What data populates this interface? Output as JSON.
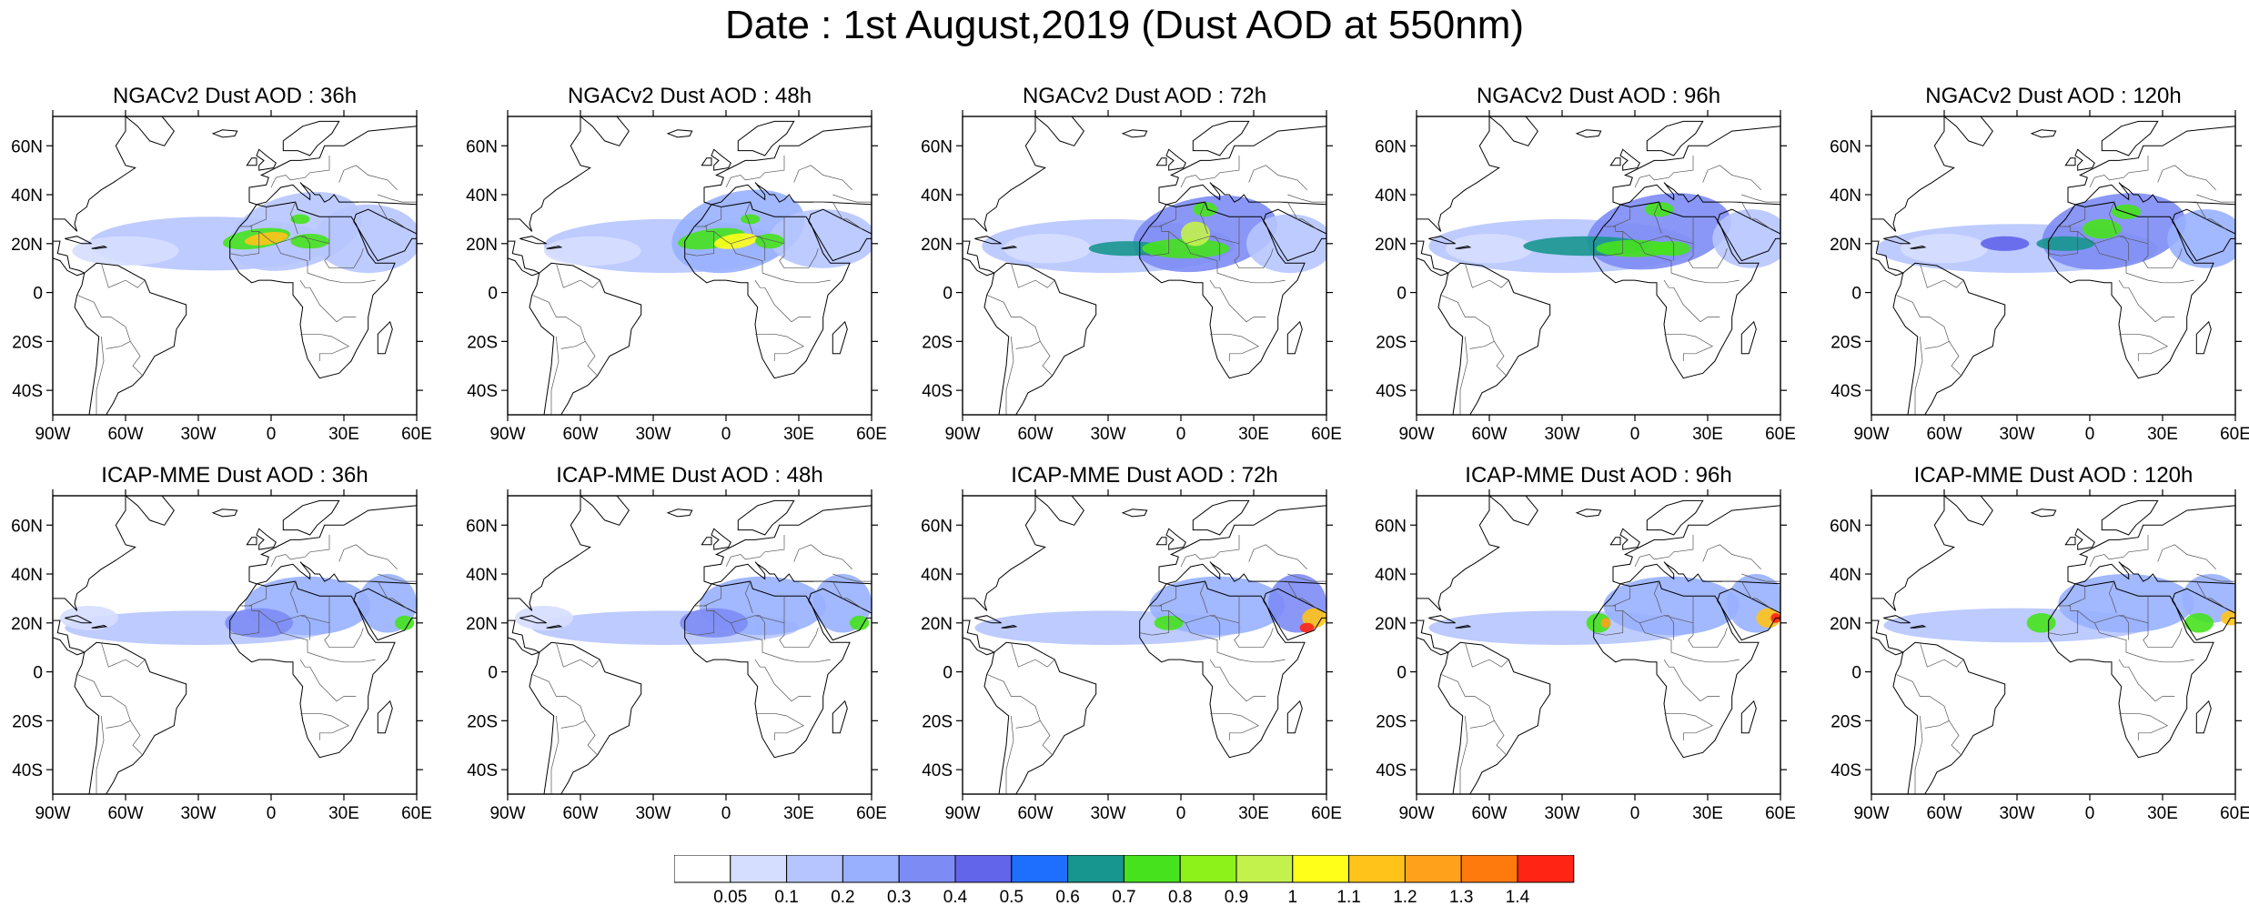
{
  "title": "Date : 1st August,2019 (Dust AOD at 550nm)",
  "panels": [
    {
      "title": "NGACv2 Dust AOD : 36h",
      "model": "NGACv2",
      "lead_hours": 36
    },
    {
      "title": "NGACv2 Dust AOD : 48h",
      "model": "NGACv2",
      "lead_hours": 48
    },
    {
      "title": "NGACv2 Dust AOD : 72h",
      "model": "NGACv2",
      "lead_hours": 72
    },
    {
      "title": "NGACv2 Dust AOD : 96h",
      "model": "NGACv2",
      "lead_hours": 96
    },
    {
      "title": "NGACv2 Dust AOD : 120h",
      "model": "NGACv2",
      "lead_hours": 120
    },
    {
      "title": "ICAP-MME Dust AOD : 36h",
      "model": "ICAP-MME",
      "lead_hours": 36
    },
    {
      "title": "ICAP-MME Dust AOD : 48h",
      "model": "ICAP-MME",
      "lead_hours": 48
    },
    {
      "title": "ICAP-MME Dust AOD : 72h",
      "model": "ICAP-MME",
      "lead_hours": 72
    },
    {
      "title": "ICAP-MME Dust AOD : 96h",
      "model": "ICAP-MME",
      "lead_hours": 96
    },
    {
      "title": "ICAP-MME Dust AOD : 120h",
      "model": "ICAP-MME",
      "lead_hours": 120
    }
  ],
  "axes": {
    "lon_range": [
      -90,
      60
    ],
    "lat_range": [
      -50,
      72
    ],
    "lon_ticks": [
      {
        "value": -90,
        "label": "90W"
      },
      {
        "value": -60,
        "label": "60W"
      },
      {
        "value": -30,
        "label": "30W"
      },
      {
        "value": 0,
        "label": "0"
      },
      {
        "value": 30,
        "label": "30E"
      },
      {
        "value": 60,
        "label": "60E"
      }
    ],
    "lat_ticks": [
      {
        "value": 60,
        "label": "60N"
      },
      {
        "value": 40,
        "label": "40N"
      },
      {
        "value": 20,
        "label": "20N"
      },
      {
        "value": 0,
        "label": "0"
      },
      {
        "value": -20,
        "label": "20S"
      },
      {
        "value": -40,
        "label": "40S"
      }
    ]
  },
  "colorbar": {
    "labels": [
      "0.05",
      "0.1",
      "0.2",
      "0.3",
      "0.4",
      "0.5",
      "0.6",
      "0.7",
      "0.8",
      "0.9",
      "1",
      "1.1",
      "1.2",
      "1.3",
      "1.4"
    ],
    "colors": [
      "#ffffff",
      "#d6deff",
      "#b6c5ff",
      "#98b0ff",
      "#7d8cf5",
      "#6264ea",
      "#1f6fff",
      "#17968f",
      "#46e21d",
      "#8cf21a",
      "#c3f24d",
      "#ffff1a",
      "#ffc31a",
      "#ffa11a",
      "#ff7a0d",
      "#ff2414"
    ]
  },
  "map_colors": {
    "coast": "#000000",
    "border": "#555555"
  }
}
